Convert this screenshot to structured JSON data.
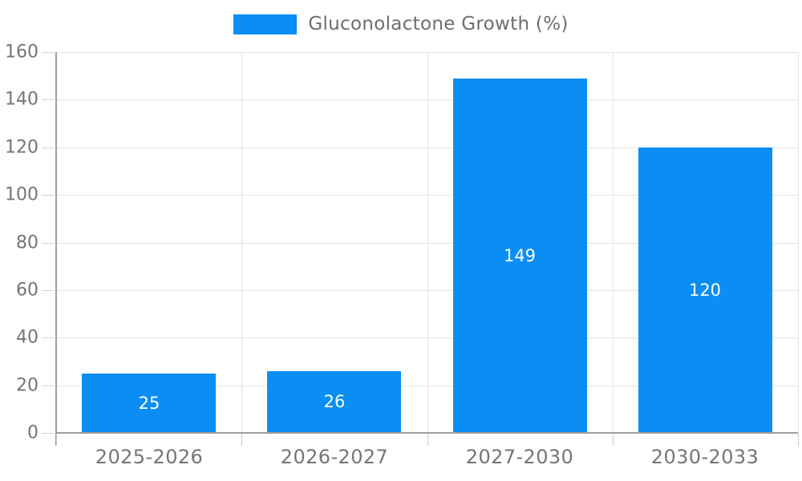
{
  "legend": {
    "label": "Gluconolactone Growth (%)"
  },
  "chart_data": {
    "type": "bar",
    "title": "Gluconolactone Growth (%)",
    "categories": [
      "2025-2026",
      "2026-2027",
      "2027-2030",
      "2030-2033"
    ],
    "values": [
      25,
      26,
      149,
      120
    ],
    "xlabel": "",
    "ylabel": "",
    "ylim": [
      0,
      160
    ],
    "ytick_step": 20,
    "yticks": [
      0,
      20,
      40,
      60,
      80,
      100,
      120,
      140,
      160
    ],
    "grid": true,
    "legend_position": "top",
    "value_labels": "inside-center",
    "colors": {
      "bar": "#0a8ef4",
      "value_label": "#ffffff",
      "axis_label": "#757575",
      "legend_label": "#6e6e6e",
      "gridline": "#e3e3e3",
      "axis_line": "#9e9e9e"
    }
  }
}
